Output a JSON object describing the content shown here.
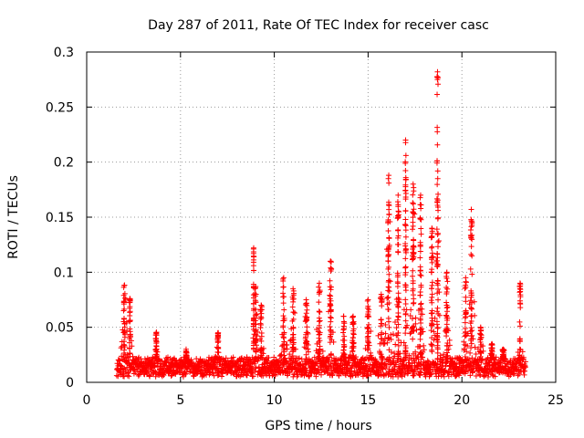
{
  "chart_data": {
    "type": "scatter",
    "title": "Day 287 of 2011, Rate Of TEC Index for receiver casc",
    "xlabel": "GPS time / hours",
    "ylabel": "ROTI / TECUs",
    "xlim": [
      0,
      25
    ],
    "ylim": [
      0,
      0.3
    ],
    "x_ticks": [
      0,
      5,
      10,
      15,
      20,
      25
    ],
    "y_ticks": [
      0,
      0.05,
      0.1,
      0.15,
      0.2,
      0.25,
      0.3
    ],
    "x_tick_labels": [
      "0",
      "5",
      "10",
      "15",
      "20",
      "25"
    ],
    "y_tick_labels": [
      "0",
      "0.05",
      "0.1",
      "0.15",
      "0.2",
      "0.25",
      "0.3"
    ],
    "grid": true,
    "marker": "+",
    "series_color": "#ff0000",
    "time_start": 1.6,
    "time_end": 23.4,
    "baseline_level": 0.012,
    "spikes": [
      {
        "x": 2.0,
        "peak": 0.088,
        "width": 0.2
      },
      {
        "x": 2.3,
        "peak": 0.076,
        "width": 0.15
      },
      {
        "x": 3.7,
        "peak": 0.045,
        "width": 0.15
      },
      {
        "x": 5.3,
        "peak": 0.03,
        "width": 0.2
      },
      {
        "x": 7.0,
        "peak": 0.045,
        "width": 0.15
      },
      {
        "x": 8.9,
        "peak": 0.122,
        "width": 0.03
      },
      {
        "x": 9.0,
        "peak": 0.087,
        "width": 0.15
      },
      {
        "x": 9.3,
        "peak": 0.07,
        "width": 0.2
      },
      {
        "x": 10.5,
        "peak": 0.095,
        "width": 0.2
      },
      {
        "x": 11.0,
        "peak": 0.085,
        "width": 0.2
      },
      {
        "x": 11.7,
        "peak": 0.075,
        "width": 0.2
      },
      {
        "x": 12.4,
        "peak": 0.09,
        "width": 0.2
      },
      {
        "x": 13.0,
        "peak": 0.11,
        "width": 0.2
      },
      {
        "x": 13.7,
        "peak": 0.06,
        "width": 0.2
      },
      {
        "x": 14.2,
        "peak": 0.06,
        "width": 0.2
      },
      {
        "x": 15.0,
        "peak": 0.075,
        "width": 0.2
      },
      {
        "x": 15.7,
        "peak": 0.08,
        "width": 0.2
      },
      {
        "x": 16.1,
        "peak": 0.188,
        "width": 0.2
      },
      {
        "x": 16.6,
        "peak": 0.17,
        "width": 0.15
      },
      {
        "x": 17.0,
        "peak": 0.22,
        "width": 0.1
      },
      {
        "x": 17.4,
        "peak": 0.18,
        "width": 0.2
      },
      {
        "x": 17.8,
        "peak": 0.17,
        "width": 0.15
      },
      {
        "x": 18.4,
        "peak": 0.14,
        "width": 0.15
      },
      {
        "x": 18.7,
        "peak": 0.282,
        "width": 0.15
      },
      {
        "x": 19.2,
        "peak": 0.1,
        "width": 0.2
      },
      {
        "x": 20.2,
        "peak": 0.095,
        "width": 0.2
      },
      {
        "x": 20.5,
        "peak": 0.157,
        "width": 0.2
      },
      {
        "x": 21.0,
        "peak": 0.05,
        "width": 0.2
      },
      {
        "x": 21.6,
        "peak": 0.035,
        "width": 0.2
      },
      {
        "x": 22.2,
        "peak": 0.03,
        "width": 0.2
      },
      {
        "x": 23.1,
        "peak": 0.09,
        "width": 0.15
      }
    ]
  }
}
